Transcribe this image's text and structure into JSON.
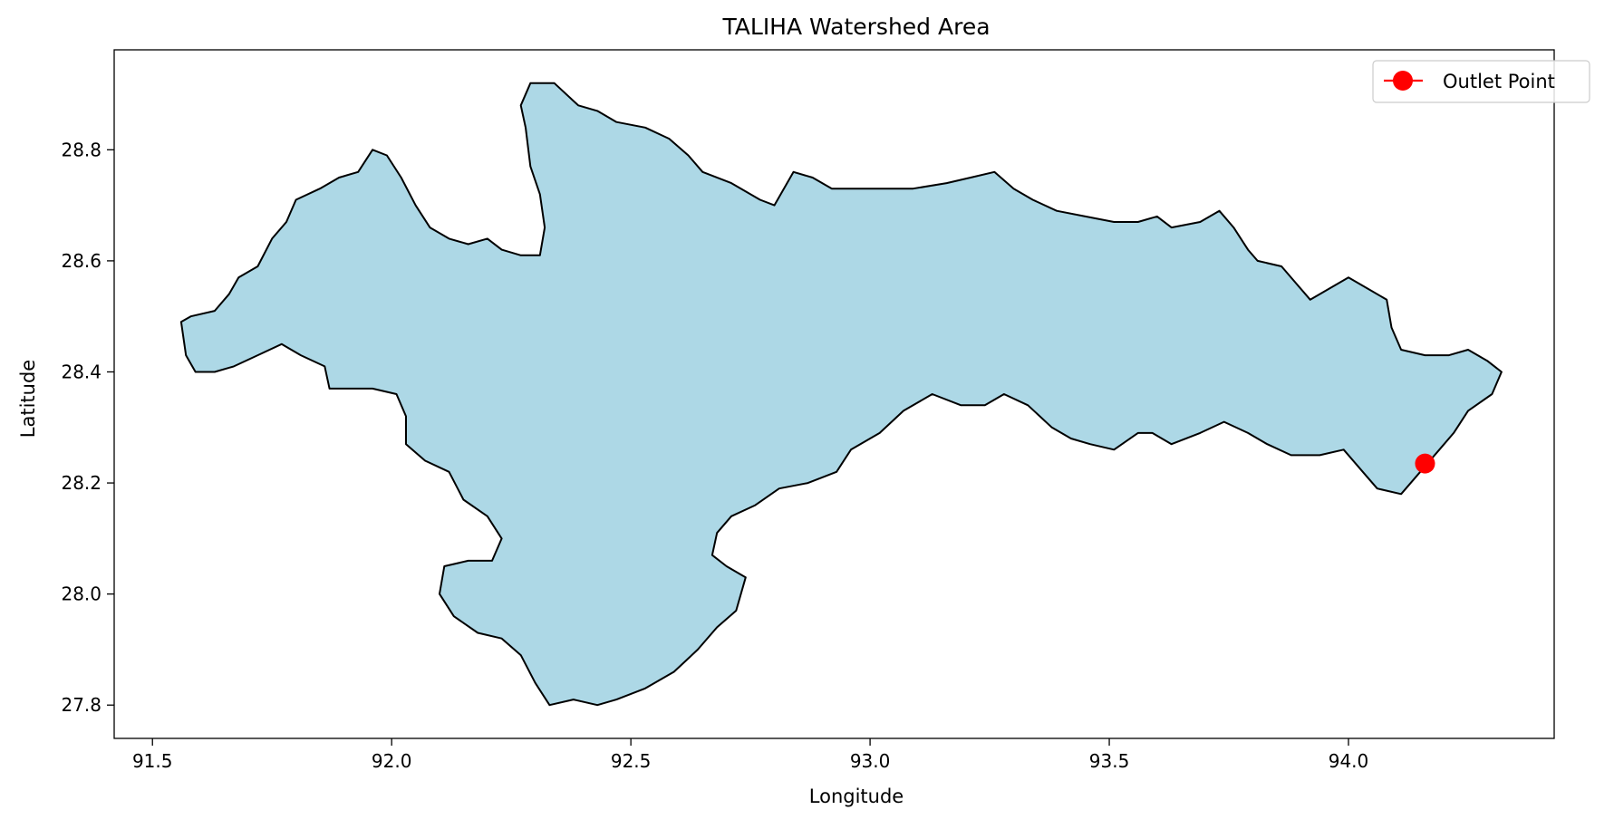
{
  "chart_data": {
    "type": "map",
    "title": "TALIHA Watershed Area",
    "xlabel": "Longitude",
    "ylabel": "Latitude",
    "xlim": [
      91.42,
      94.43
    ],
    "ylim": [
      27.74,
      28.98
    ],
    "xticks": [
      91.5,
      92.0,
      92.5,
      93.0,
      93.5,
      94.0
    ],
    "xtick_labels": [
      "91.5",
      "92.0",
      "92.5",
      "93.0",
      "93.5",
      "94.0"
    ],
    "yticks": [
      27.8,
      28.0,
      28.2,
      28.4,
      28.6,
      28.8
    ],
    "ytick_labels": [
      "27.8",
      "28.0",
      "28.2",
      "28.4",
      "28.6",
      "28.8"
    ],
    "grid": false,
    "legend": {
      "placement": "top-right",
      "entries": [
        "Outlet Point"
      ]
    },
    "watershed": {
      "fill": "#add8e6",
      "edge": "#000000",
      "boundary": [
        [
          91.56,
          28.49
        ],
        [
          91.58,
          28.5
        ],
        [
          91.63,
          28.51
        ],
        [
          91.66,
          28.54
        ],
        [
          91.68,
          28.57
        ],
        [
          91.72,
          28.59
        ],
        [
          91.75,
          28.64
        ],
        [
          91.78,
          28.67
        ],
        [
          91.8,
          28.71
        ],
        [
          91.85,
          28.73
        ],
        [
          91.89,
          28.75
        ],
        [
          91.93,
          28.76
        ],
        [
          91.96,
          28.8
        ],
        [
          91.99,
          28.79
        ],
        [
          92.02,
          28.75
        ],
        [
          92.05,
          28.7
        ],
        [
          92.08,
          28.66
        ],
        [
          92.12,
          28.64
        ],
        [
          92.16,
          28.63
        ],
        [
          92.2,
          28.64
        ],
        [
          92.23,
          28.62
        ],
        [
          92.27,
          28.61
        ],
        [
          92.31,
          28.61
        ],
        [
          92.32,
          28.66
        ],
        [
          92.31,
          28.72
        ],
        [
          92.29,
          28.77
        ],
        [
          92.28,
          28.84
        ],
        [
          92.27,
          28.88
        ],
        [
          92.29,
          28.92
        ],
        [
          92.34,
          28.92
        ],
        [
          92.39,
          28.88
        ],
        [
          92.43,
          28.87
        ],
        [
          92.47,
          28.85
        ],
        [
          92.53,
          28.84
        ],
        [
          92.58,
          28.82
        ],
        [
          92.62,
          28.79
        ],
        [
          92.65,
          28.76
        ],
        [
          92.71,
          28.74
        ],
        [
          92.77,
          28.71
        ],
        [
          92.8,
          28.7
        ],
        [
          92.84,
          28.76
        ],
        [
          92.88,
          28.75
        ],
        [
          92.92,
          28.73
        ],
        [
          92.98,
          28.73
        ],
        [
          93.04,
          28.73
        ],
        [
          93.09,
          28.73
        ],
        [
          93.16,
          28.74
        ],
        [
          93.21,
          28.75
        ],
        [
          93.26,
          28.76
        ],
        [
          93.3,
          28.73
        ],
        [
          93.34,
          28.71
        ],
        [
          93.39,
          28.69
        ],
        [
          93.45,
          28.68
        ],
        [
          93.51,
          28.67
        ],
        [
          93.56,
          28.67
        ],
        [
          93.6,
          28.68
        ],
        [
          93.63,
          28.66
        ],
        [
          93.69,
          28.67
        ],
        [
          93.73,
          28.69
        ],
        [
          93.76,
          28.66
        ],
        [
          93.79,
          28.62
        ],
        [
          93.81,
          28.6
        ],
        [
          93.86,
          28.59
        ],
        [
          93.89,
          28.56
        ],
        [
          93.92,
          28.53
        ],
        [
          93.96,
          28.55
        ],
        [
          94.0,
          28.57
        ],
        [
          94.04,
          28.55
        ],
        [
          94.08,
          28.53
        ],
        [
          94.09,
          28.48
        ],
        [
          94.11,
          28.44
        ],
        [
          94.16,
          28.43
        ],
        [
          94.21,
          28.43
        ],
        [
          94.25,
          28.44
        ],
        [
          94.29,
          28.42
        ],
        [
          94.32,
          28.4
        ],
        [
          94.3,
          28.36
        ],
        [
          94.25,
          28.33
        ],
        [
          94.22,
          28.29
        ],
        [
          94.19,
          28.26
        ],
        [
          94.15,
          28.22
        ],
        [
          94.11,
          28.18
        ],
        [
          94.06,
          28.19
        ],
        [
          94.03,
          28.22
        ],
        [
          93.99,
          28.26
        ],
        [
          93.94,
          28.25
        ],
        [
          93.88,
          28.25
        ],
        [
          93.83,
          28.27
        ],
        [
          93.79,
          28.29
        ],
        [
          93.74,
          28.31
        ],
        [
          93.69,
          28.29
        ],
        [
          93.63,
          28.27
        ],
        [
          93.59,
          28.29
        ],
        [
          93.56,
          28.29
        ],
        [
          93.51,
          28.26
        ],
        [
          93.46,
          28.27
        ],
        [
          93.42,
          28.28
        ],
        [
          93.38,
          28.3
        ],
        [
          93.33,
          28.34
        ],
        [
          93.28,
          28.36
        ],
        [
          93.24,
          28.34
        ],
        [
          93.19,
          28.34
        ],
        [
          93.13,
          28.36
        ],
        [
          93.07,
          28.33
        ],
        [
          93.02,
          28.29
        ],
        [
          92.96,
          28.26
        ],
        [
          92.93,
          28.22
        ],
        [
          92.87,
          28.2
        ],
        [
          92.81,
          28.19
        ],
        [
          92.76,
          28.16
        ],
        [
          92.71,
          28.14
        ],
        [
          92.68,
          28.11
        ],
        [
          92.67,
          28.07
        ],
        [
          92.7,
          28.05
        ],
        [
          92.74,
          28.03
        ],
        [
          92.72,
          27.97
        ],
        [
          92.68,
          27.94
        ],
        [
          92.64,
          27.9
        ],
        [
          92.59,
          27.86
        ],
        [
          92.53,
          27.83
        ],
        [
          92.47,
          27.81
        ],
        [
          92.43,
          27.8
        ],
        [
          92.38,
          27.81
        ],
        [
          92.33,
          27.8
        ],
        [
          92.3,
          27.84
        ],
        [
          92.27,
          27.89
        ],
        [
          92.23,
          27.92
        ],
        [
          92.18,
          27.93
        ],
        [
          92.13,
          27.96
        ],
        [
          92.1,
          28.0
        ],
        [
          92.11,
          28.05
        ],
        [
          92.16,
          28.06
        ],
        [
          92.21,
          28.06
        ],
        [
          92.23,
          28.1
        ],
        [
          92.2,
          28.14
        ],
        [
          92.15,
          28.17
        ],
        [
          92.12,
          28.22
        ],
        [
          92.07,
          28.24
        ],
        [
          92.03,
          28.27
        ],
        [
          92.03,
          28.32
        ],
        [
          92.01,
          28.36
        ],
        [
          91.96,
          28.37
        ],
        [
          91.91,
          28.37
        ],
        [
          91.87,
          28.37
        ],
        [
          91.86,
          28.41
        ],
        [
          91.81,
          28.43
        ],
        [
          91.77,
          28.45
        ],
        [
          91.72,
          28.43
        ],
        [
          91.67,
          28.41
        ],
        [
          91.63,
          28.4
        ],
        [
          91.59,
          28.4
        ],
        [
          91.57,
          28.43
        ],
        [
          91.56,
          28.49
        ]
      ]
    },
    "series": [
      {
        "name": "Outlet Point",
        "color": "#ff0000",
        "marker": "circle",
        "x": [
          94.16
        ],
        "y": [
          28.235
        ]
      }
    ]
  }
}
